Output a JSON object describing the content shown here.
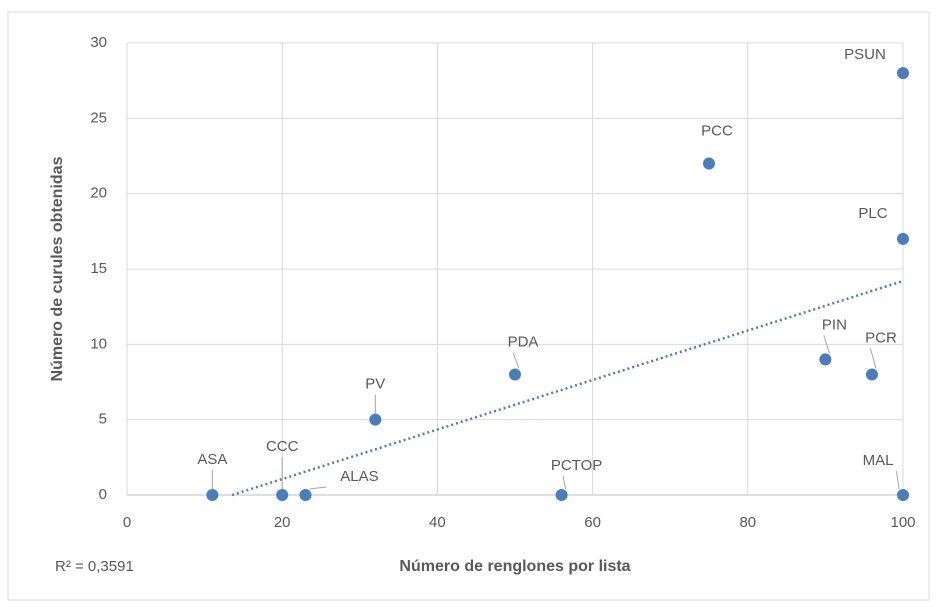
{
  "chart_data": {
    "type": "scatter",
    "x_label": "Número de renglones por lista",
    "y_label": "Número de curules obtenidas",
    "annotation": "R² = 0,3591",
    "labels": [
      "ASA",
      "CCC",
      "ALAS",
      "PV",
      "PDA",
      "PCTOP",
      "PCC",
      "PIN",
      "PCR",
      "PSUN",
      "PLC",
      "MAL"
    ],
    "x": [
      11,
      20,
      23,
      32,
      50,
      56,
      75,
      90,
      96,
      100,
      100,
      100
    ],
    "values": [
      0,
      0,
      0,
      5,
      8,
      0,
      22,
      9,
      8,
      28,
      17,
      0
    ],
    "color": "#4a7ebb",
    "trendline": "linear",
    "xlim": [
      0,
      100
    ],
    "xticks": [
      0,
      20,
      40,
      60,
      80,
      100
    ],
    "ylim": [
      0,
      30
    ],
    "yticks": [
      0,
      5,
      10,
      15,
      20,
      25,
      30
    ],
    "grid": true
  }
}
